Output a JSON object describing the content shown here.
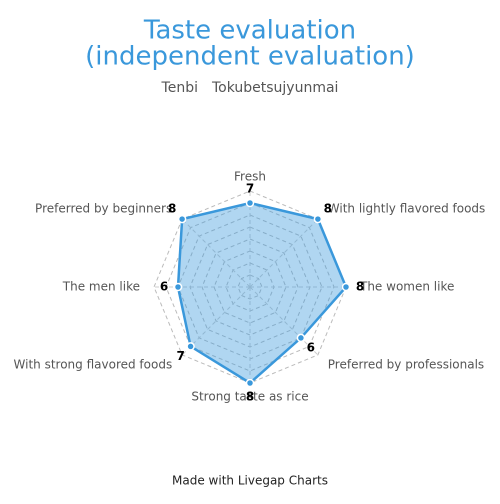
{
  "chart_data": {
    "type": "radar",
    "title": [
      "Taste evaluation",
      "(independent evaluation)"
    ],
    "subtitle": "Tenbi　Tokubetsujyunmai",
    "categories": [
      "Fresh",
      "With lightly flavored foods",
      "The women like",
      "Preferred by professionals",
      "Strong taste as rice",
      "With strong flavored foods",
      "The men like",
      "Preferred by beginners"
    ],
    "series": [
      {
        "values": [
          7,
          8,
          8,
          6,
          8,
          7,
          6,
          8
        ],
        "color": "#3a98db"
      }
    ],
    "rlim": [
      0,
      8
    ],
    "rticks": [
      1,
      2,
      3,
      4,
      5,
      6,
      7,
      8
    ],
    "grid": true,
    "footer": "Made with Livegap Charts"
  }
}
